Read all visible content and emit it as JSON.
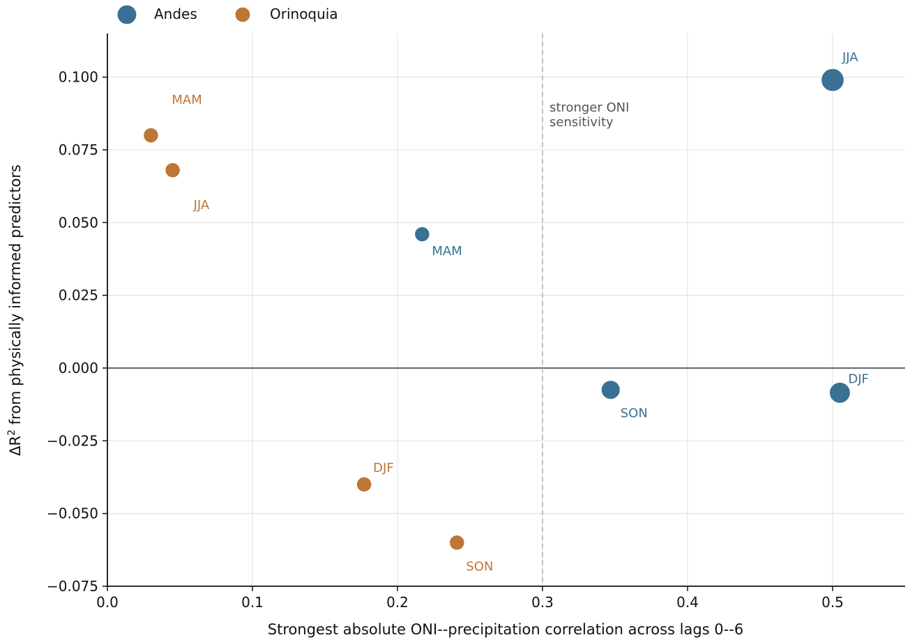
{
  "chart_data": {
    "type": "scatter",
    "title": "",
    "xlabel": "Strongest absolute ONI--precipitation correlation across lags 0--6",
    "ylabel_prefix": "ΔR",
    "ylabel_sup": "2",
    "ylabel_suffix": " from physically informed predictors",
    "xlim": [
      0.0,
      0.55
    ],
    "ylim": [
      -0.075,
      0.115
    ],
    "xticks": [
      0.0,
      0.1,
      0.2,
      0.3,
      0.4,
      0.5
    ],
    "xtick_labels": [
      "0.0",
      "0.1",
      "0.2",
      "0.3",
      "0.4",
      "0.5"
    ],
    "yticks": [
      -0.075,
      -0.05,
      -0.025,
      0.0,
      0.025,
      0.05,
      0.075,
      0.1
    ],
    "ytick_labels": [
      "−0.075",
      "−0.050",
      "−0.025",
      "0.000",
      "0.025",
      "0.050",
      "0.075",
      "0.100"
    ],
    "grid": true,
    "legend_position": "top-left, above plot",
    "reference_lines": [
      {
        "orientation": "horizontal",
        "value": 0.0,
        "style": "solid"
      },
      {
        "orientation": "vertical",
        "value": 0.3,
        "style": "dashed",
        "annotation": [
          "stronger ONI",
          "sensitivity"
        ]
      }
    ],
    "series": [
      {
        "name": "Andes",
        "color": "#3a7093",
        "points": [
          {
            "label": "JJA",
            "x": 0.5,
            "y": 0.099,
            "size": 3
          },
          {
            "label": "MAM",
            "x": 0.217,
            "y": 0.046,
            "size": 1
          },
          {
            "label": "SON",
            "x": 0.347,
            "y": -0.0075,
            "size": 2
          },
          {
            "label": "DJF",
            "x": 0.505,
            "y": -0.0085,
            "size": 2.5
          }
        ]
      },
      {
        "name": "Orinoquia",
        "color": "#bd7636",
        "points": [
          {
            "label": "MAM",
            "x": 0.03,
            "y": 0.08,
            "size": 1
          },
          {
            "label": "JJA",
            "x": 0.045,
            "y": 0.068,
            "size": 1
          },
          {
            "label": "DJF",
            "x": 0.177,
            "y": -0.04,
            "size": 1
          },
          {
            "label": "SON",
            "x": 0.241,
            "y": -0.06,
            "size": 1
          }
        ]
      }
    ]
  }
}
